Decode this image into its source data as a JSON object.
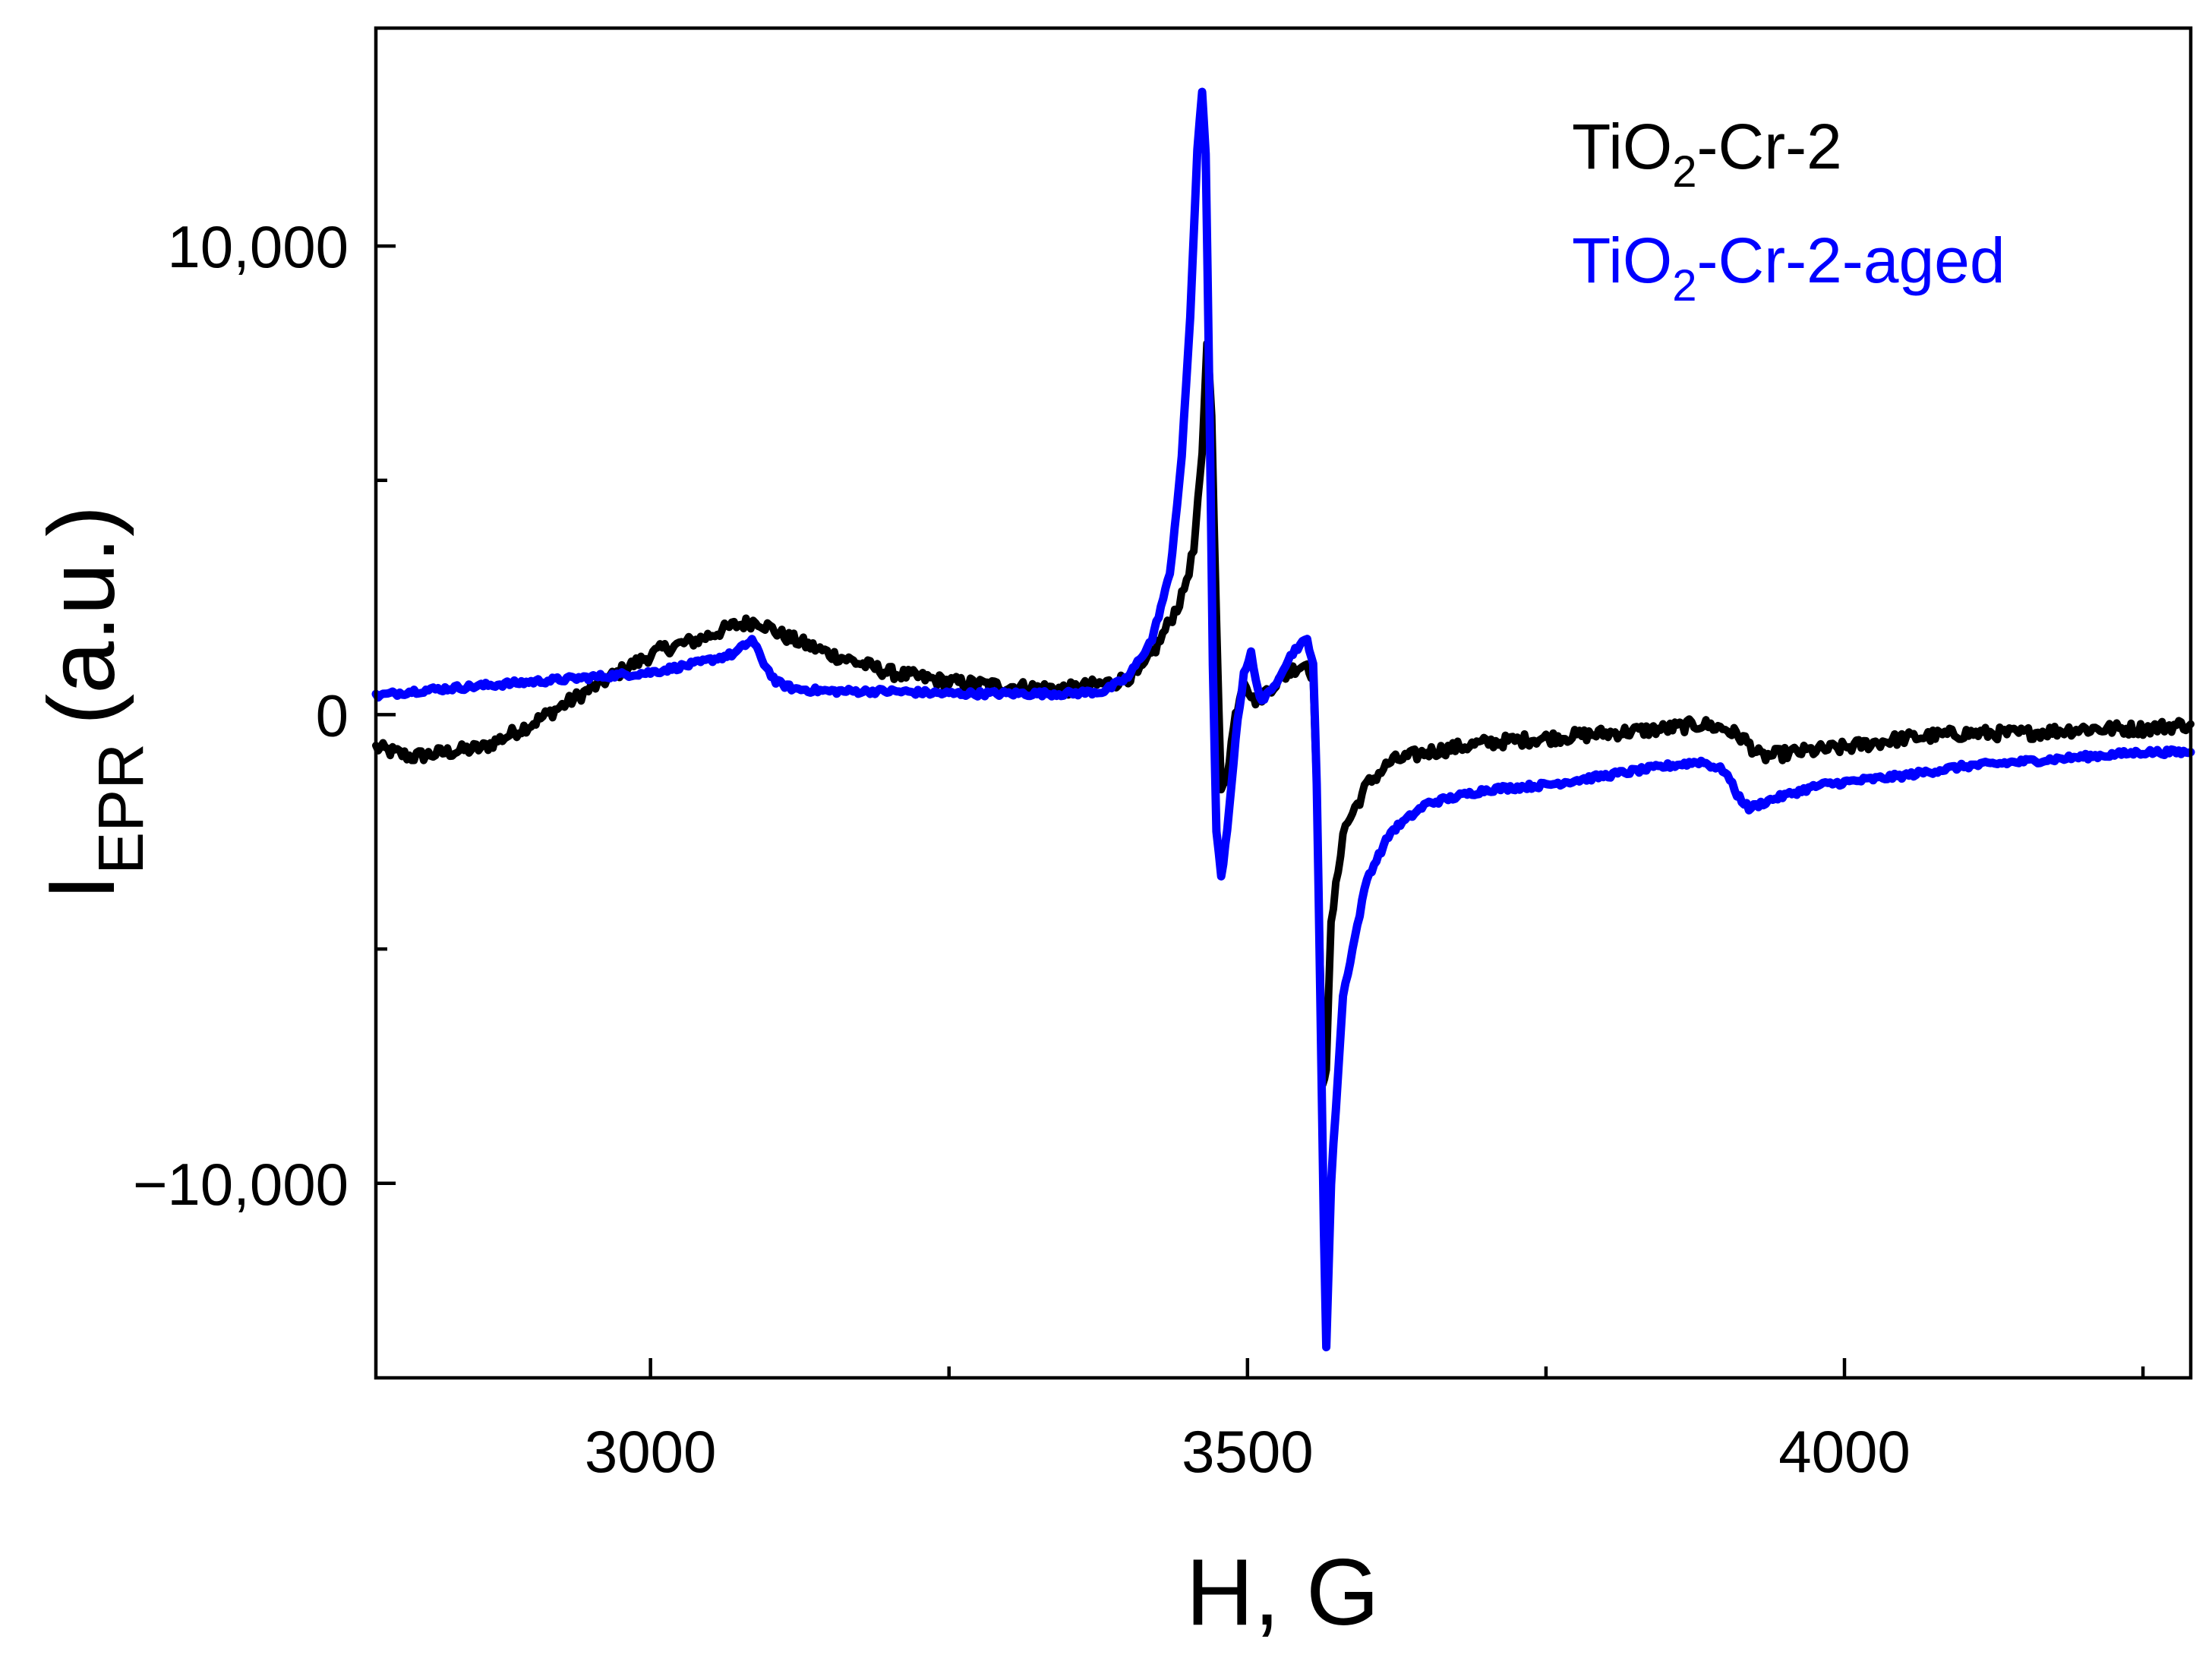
{
  "chart_data": {
    "type": "line",
    "title": "",
    "xlabel": "H, G",
    "ylabel": "I",
    "ylabel_subscript": "EPR",
    "ylabel_suffix": "(a.u.)",
    "xlim": [
      2770,
      4290
    ],
    "ylim": [
      -14150,
      14650
    ],
    "x_ticks": [
      3000,
      3500,
      4000
    ],
    "x_tick_labels": [
      "3000",
      "3500",
      "4000"
    ],
    "x_minor_ticks": [
      3250,
      3750,
      4250
    ],
    "y_ticks": [
      10000,
      0,
      -10000
    ],
    "y_tick_labels": [
      "10,000",
      "0",
      "−10,000"
    ],
    "y_minor_ticks": [
      5000,
      -5000
    ],
    "grid": false,
    "legend_position": "top-right",
    "series": [
      {
        "name": "TiO2-Cr-2",
        "legend_main": "TiO",
        "legend_sub": "2",
        "legend_rest": "-Cr-2",
        "color": "#000000",
        "x": [
          2770,
          2800,
          2830,
          2860,
          2900,
          2940,
          2980,
          3010,
          3040,
          3070,
          3090,
          3110,
          3150,
          3200,
          3250,
          3300,
          3350,
          3390,
          3410,
          3425,
          3435,
          3445,
          3455,
          3462,
          3466,
          3470,
          3474,
          3478,
          3483,
          3490,
          3497,
          3505,
          3512,
          3520,
          3530,
          3540,
          3550,
          3555,
          3558,
          3560,
          3563,
          3566,
          3570,
          3580,
          3600,
          3620,
          3650,
          3700,
          3750,
          3800,
          3850,
          3880,
          3900,
          3915,
          3930,
          3960,
          4000,
          4050,
          4100,
          4150,
          4200,
          4250,
          4290
        ],
        "y": [
          -700,
          -900,
          -800,
          -700,
          -200,
          400,
          1000,
          1400,
          1600,
          1900,
          2000,
          1700,
          1300,
          900,
          700,
          600,
          550,
          700,
          900,
          1500,
          2000,
          2500,
          3500,
          5500,
          8000,
          6500,
          2000,
          -1700,
          -1200,
          0,
          800,
          300,
          400,
          600,
          800,
          1000,
          1100,
          800,
          -1500,
          -4500,
          -7800,
          -7500,
          -4500,
          -2500,
          -1500,
          -1000,
          -800,
          -600,
          -500,
          -400,
          -300,
          -200,
          -300,
          -500,
          -900,
          -800,
          -700,
          -500,
          -400,
          -400,
          -300,
          -300,
          -200
        ]
      },
      {
        "name": "TiO2-Cr-2-aged",
        "legend_main": "TiO",
        "legend_sub": "2",
        "legend_rest": "-Cr-2-aged",
        "color": "#0000ff",
        "x": [
          2770,
          2800,
          2850,
          2900,
          2950,
          3000,
          3040,
          3070,
          3085,
          3095,
          3105,
          3120,
          3150,
          3200,
          3250,
          3300,
          3350,
          3380,
          3400,
          3420,
          3435,
          3445,
          3452,
          3458,
          3462,
          3465,
          3468,
          3471,
          3474,
          3478,
          3483,
          3490,
          3497,
          3503,
          3507,
          3512,
          3520,
          3530,
          3540,
          3550,
          3555,
          3558,
          3561,
          3564,
          3566,
          3570,
          3580,
          3600,
          3620,
          3650,
          3700,
          3750,
          3800,
          3850,
          3880,
          3900,
          3910,
          3920,
          3940,
          3980,
          4050,
          4100,
          4150,
          4200,
          4250,
          4290
        ],
        "y": [
          400,
          500,
          600,
          700,
          800,
          900,
          1100,
          1300,
          1600,
          1100,
          700,
          550,
          500,
          500,
          450,
          450,
          450,
          500,
          800,
          1600,
          3000,
          5500,
          8500,
          12000,
          13300,
          12000,
          7000,
          1000,
          -2500,
          -3500,
          -2500,
          -500,
          900,
          1300,
          700,
          300,
          500,
          1000,
          1400,
          1600,
          1100,
          -1500,
          -6000,
          -11000,
          -13500,
          -10000,
          -6000,
          -3500,
          -2500,
          -1900,
          -1600,
          -1500,
          -1300,
          -1100,
          -1000,
          -1200,
          -1700,
          -2000,
          -1800,
          -1500,
          -1300,
          -1100,
          -1000,
          -900,
          -800,
          -800
        ]
      }
    ]
  }
}
